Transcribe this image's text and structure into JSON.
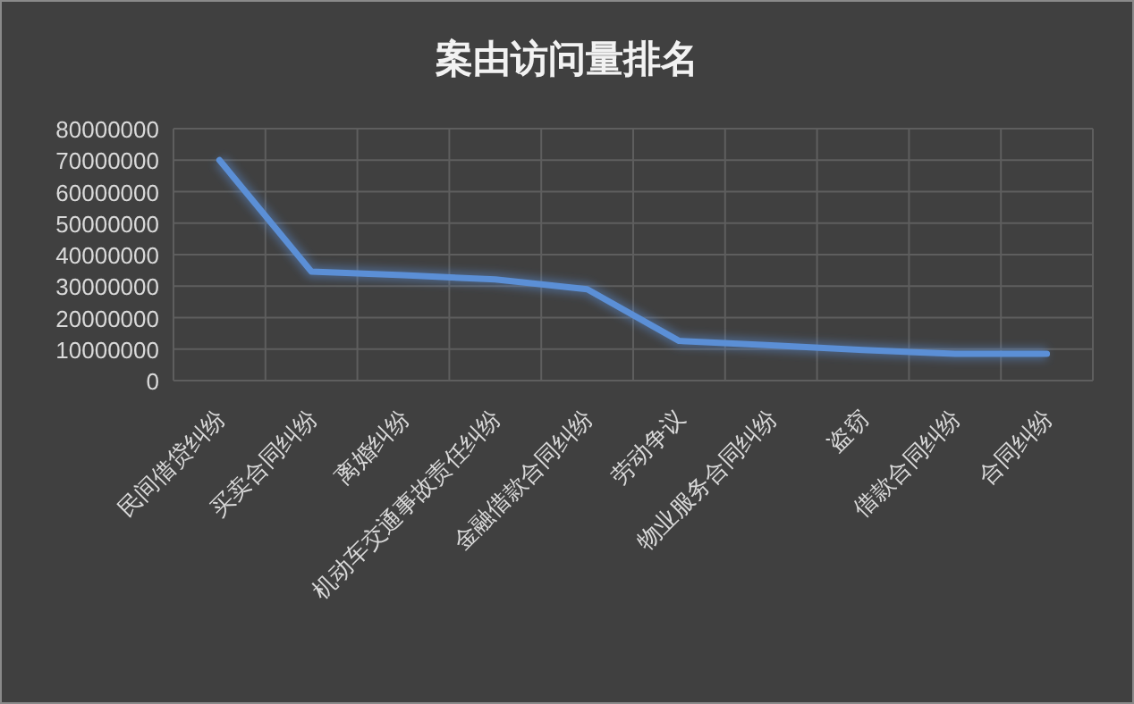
{
  "chart_data": {
    "type": "line",
    "title": "案由访问量排名",
    "categories": [
      "民间借贷纠纷",
      "买卖合同纠纷",
      "离婚纠纷",
      "机动车交通事故责任纠纷",
      "金融借款合同纠纷",
      "劳动争议",
      "物业服务合同纠纷",
      "盗窃",
      "借款合同纠纷",
      "合同纠纷"
    ],
    "series": [
      {
        "color": "#5b8fd6",
        "values": [
          70000000,
          34600000,
          33500000,
          32100000,
          29000000,
          12600000,
          11200000,
          9700000,
          8500000,
          8500000
        ]
      }
    ],
    "ylim": [
      0,
      80000000
    ],
    "yticks": [
      0,
      10000000,
      20000000,
      30000000,
      40000000,
      50000000,
      60000000,
      70000000,
      80000000
    ],
    "grid": true,
    "marker": "none",
    "line_style": "solid"
  }
}
